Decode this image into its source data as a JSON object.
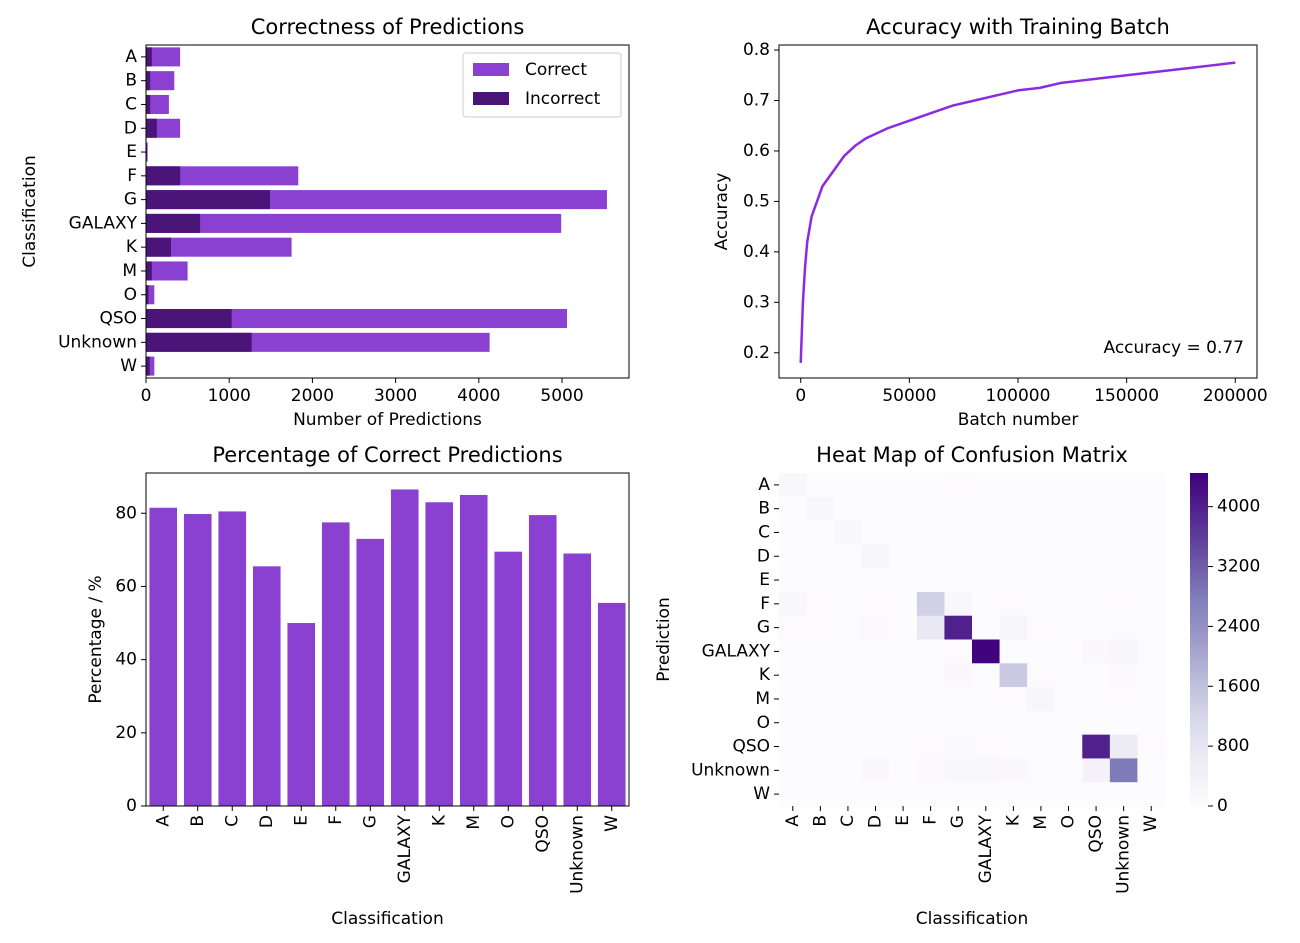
{
  "chart_data": [
    {
      "type": "barh",
      "title": "Correctness of Predictions",
      "xlabel": "Number of Predictions",
      "ylabel": "Classification",
      "categories": [
        "A",
        "B",
        "C",
        "D",
        "E",
        "F",
        "G",
        "GALAXY",
        "K",
        "M",
        "O",
        "QSO",
        "Unknown",
        "W"
      ],
      "series": [
        {
          "name": "Correct",
          "color": "#8a40d0",
          "values": [
            410,
            340,
            275,
            410,
            20,
            1830,
            5540,
            4990,
            1750,
            500,
            100,
            5060,
            4130,
            100
          ]
        },
        {
          "name": "Incorrect",
          "color": "#4b1478",
          "values": [
            70,
            50,
            50,
            130,
            10,
            410,
            1490,
            650,
            300,
            70,
            30,
            1030,
            1270,
            45
          ]
        }
      ],
      "xlim": [
        0,
        5805
      ],
      "xticks": [
        0,
        1000,
        2000,
        3000,
        4000,
        5000
      ],
      "legend": "upper right"
    },
    {
      "type": "line",
      "title": "Accuracy with Training Batch",
      "xlabel": "Batch number",
      "ylabel": "Accuracy",
      "annotation": "Accuracy = 0.77",
      "color": "#8a2be2",
      "x": [
        0,
        1000,
        2000,
        3000,
        5000,
        7500,
        10000,
        15000,
        20000,
        25000,
        30000,
        40000,
        50000,
        60000,
        70000,
        80000,
        90000,
        100000,
        110000,
        120000,
        130000,
        140000,
        150000,
        160000,
        170000,
        180000,
        190000,
        200000
      ],
      "values": [
        0.18,
        0.3,
        0.37,
        0.42,
        0.47,
        0.5,
        0.53,
        0.56,
        0.59,
        0.61,
        0.625,
        0.645,
        0.66,
        0.675,
        0.69,
        0.7,
        0.71,
        0.72,
        0.725,
        0.735,
        0.74,
        0.745,
        0.75,
        0.755,
        0.76,
        0.765,
        0.77,
        0.775
      ],
      "xlim": [
        -10000,
        210000
      ],
      "xticks": [
        0,
        50000,
        100000,
        150000,
        200000
      ],
      "ylim": [
        0.15,
        0.81
      ],
      "yticks": [
        0.2,
        0.3,
        0.4,
        0.5,
        0.6,
        0.7,
        0.8
      ]
    },
    {
      "type": "bar",
      "title": "Percentage of Correct Predictions",
      "xlabel": "Classification",
      "ylabel": "Percentage / %",
      "categories": [
        "A",
        "B",
        "C",
        "D",
        "E",
        "F",
        "G",
        "GALAXY",
        "K",
        "M",
        "O",
        "QSO",
        "Unknown",
        "W"
      ],
      "values": [
        81.5,
        79.8,
        80.5,
        65.5,
        50,
        77.5,
        73,
        86.5,
        83,
        85,
        69.5,
        79.5,
        69,
        55.5
      ],
      "color": "#8a40d0",
      "ylim": [
        0,
        91
      ],
      "yticks": [
        0,
        20,
        40,
        60,
        80
      ]
    },
    {
      "type": "heatmap",
      "title": "Heat Map of Confusion Matrix",
      "xlabel": "Classification",
      "ylabel": "Prediction",
      "x_categories": [
        "A",
        "B",
        "C",
        "D",
        "E",
        "F",
        "G",
        "GALAXY",
        "K",
        "M",
        "O",
        "QSO",
        "Unknown",
        "W"
      ],
      "y_categories": [
        "A",
        "B",
        "C",
        "D",
        "E",
        "F",
        "G",
        "GALAXY",
        "K",
        "M",
        "O",
        "QSO",
        "Unknown",
        "W"
      ],
      "colormap": "Purples",
      "zlim": [
        0,
        4450
      ],
      "zticks": [
        0,
        800,
        1600,
        2400,
        3200,
        4000
      ],
      "values": [
        [
          150,
          0,
          0,
          0,
          0,
          0,
          20,
          0,
          0,
          0,
          0,
          0,
          10,
          0
        ],
        [
          0,
          150,
          0,
          0,
          0,
          0,
          0,
          0,
          0,
          0,
          0,
          0,
          0,
          0
        ],
        [
          0,
          0,
          130,
          0,
          0,
          0,
          0,
          0,
          0,
          0,
          0,
          0,
          0,
          0
        ],
        [
          0,
          0,
          0,
          200,
          0,
          10,
          40,
          0,
          0,
          0,
          0,
          0,
          10,
          0
        ],
        [
          0,
          0,
          0,
          0,
          10,
          0,
          0,
          0,
          0,
          0,
          0,
          0,
          0,
          0
        ],
        [
          150,
          20,
          10,
          20,
          0,
          1300,
          150,
          0,
          20,
          0,
          0,
          0,
          20,
          0
        ],
        [
          20,
          20,
          40,
          60,
          0,
          700,
          4000,
          0,
          250,
          20,
          0,
          0,
          50,
          10
        ],
        [
          0,
          0,
          0,
          0,
          0,
          0,
          20,
          4400,
          0,
          0,
          0,
          100,
          200,
          30
        ],
        [
          0,
          0,
          0,
          0,
          0,
          0,
          100,
          0,
          1400,
          20,
          0,
          0,
          60,
          0
        ],
        [
          0,
          0,
          0,
          0,
          0,
          0,
          0,
          0,
          20,
          200,
          0,
          0,
          20,
          0
        ],
        [
          0,
          0,
          0,
          0,
          0,
          0,
          0,
          0,
          0,
          0,
          50,
          0,
          10,
          0
        ],
        [
          0,
          0,
          0,
          0,
          0,
          20,
          80,
          20,
          0,
          0,
          0,
          4000,
          600,
          20
        ],
        [
          10,
          0,
          10,
          100,
          0,
          60,
          150,
          150,
          100,
          30,
          0,
          300,
          2800,
          50
        ],
        [
          0,
          0,
          0,
          0,
          0,
          0,
          0,
          0,
          0,
          0,
          0,
          0,
          0,
          10
        ]
      ]
    }
  ]
}
